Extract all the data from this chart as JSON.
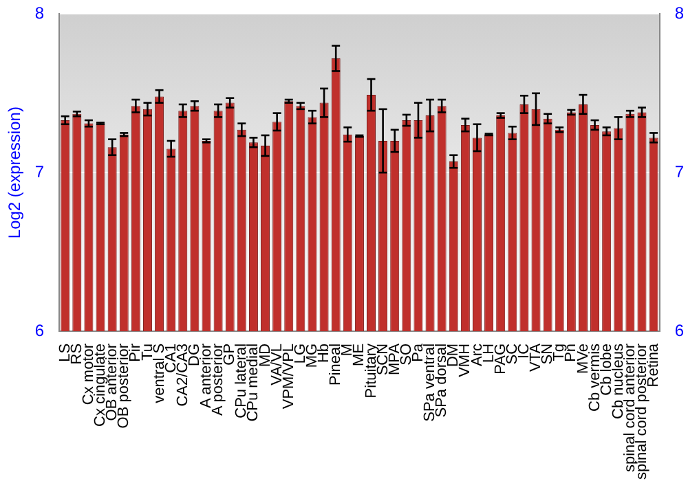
{
  "chart_data": {
    "type": "bar",
    "ylabel": "Log2 (expression)",
    "categories": [
      "LS",
      "RS",
      "Cx motor",
      "Cx cingulate",
      "OB anterior",
      "OB posterior",
      "Pir",
      "Tu",
      "ventral S",
      "CA1",
      "CA2/CA3",
      "DG",
      "A anterior",
      "A posterior",
      "GP",
      "CPu lateral",
      "CPu medial",
      "MD",
      "VA/VL",
      "VPM/VPL",
      "LG",
      "MG",
      "Hb",
      "Pineal",
      "M",
      "ME",
      "Pituitary",
      "SCN",
      "MPA",
      "SO",
      "Pa",
      "SPa ventral",
      "SPa dorsal",
      "DM",
      "VMH",
      "Arc",
      "LH",
      "PAG",
      "SC",
      "IC",
      "VTA",
      "SN",
      "Tg",
      "Pn",
      "MVe",
      "Cb vermis",
      "Cb lobe",
      "Cb nucleus",
      "spinal cord anterior",
      "spinal cord posterior",
      "Retina"
    ],
    "values": [
      7.33,
      7.37,
      7.31,
      7.31,
      7.16,
      7.24,
      7.42,
      7.4,
      7.48,
      7.15,
      7.39,
      7.42,
      7.2,
      7.39,
      7.44,
      7.27,
      7.19,
      7.17,
      7.32,
      7.45,
      7.42,
      7.35,
      7.44,
      7.72,
      7.24,
      7.23,
      7.49,
      7.2,
      7.2,
      7.33,
      7.33,
      7.36,
      7.42,
      7.07,
      7.3,
      7.22,
      7.24,
      7.36,
      7.25,
      7.43,
      7.4,
      7.34,
      7.27,
      7.38,
      7.43,
      7.3,
      7.26,
      7.28,
      7.37,
      7.38,
      7.22
    ],
    "errors": [
      0.025,
      0.015,
      0.02,
      0.005,
      0.05,
      0.01,
      0.04,
      0.04,
      0.04,
      0.05,
      0.04,
      0.03,
      0.01,
      0.04,
      0.03,
      0.04,
      0.03,
      0.065,
      0.055,
      0.01,
      0.02,
      0.04,
      0.09,
      0.08,
      0.045,
      0.005,
      0.1,
      0.2,
      0.07,
      0.035,
      0.11,
      0.1,
      0.04,
      0.04,
      0.04,
      0.085,
      0.005,
      0.015,
      0.04,
      0.055,
      0.1,
      0.03,
      0.015,
      0.015,
      0.06,
      0.03,
      0.025,
      0.07,
      0.02,
      0.03,
      0.03
    ],
    "color": "#c0302c",
    "ylim": [
      6,
      8
    ],
    "yticks": [
      6,
      7,
      8
    ],
    "y2lim": [
      6,
      8
    ],
    "y2ticks": [
      6,
      7,
      8
    ],
    "grid": "y"
  }
}
